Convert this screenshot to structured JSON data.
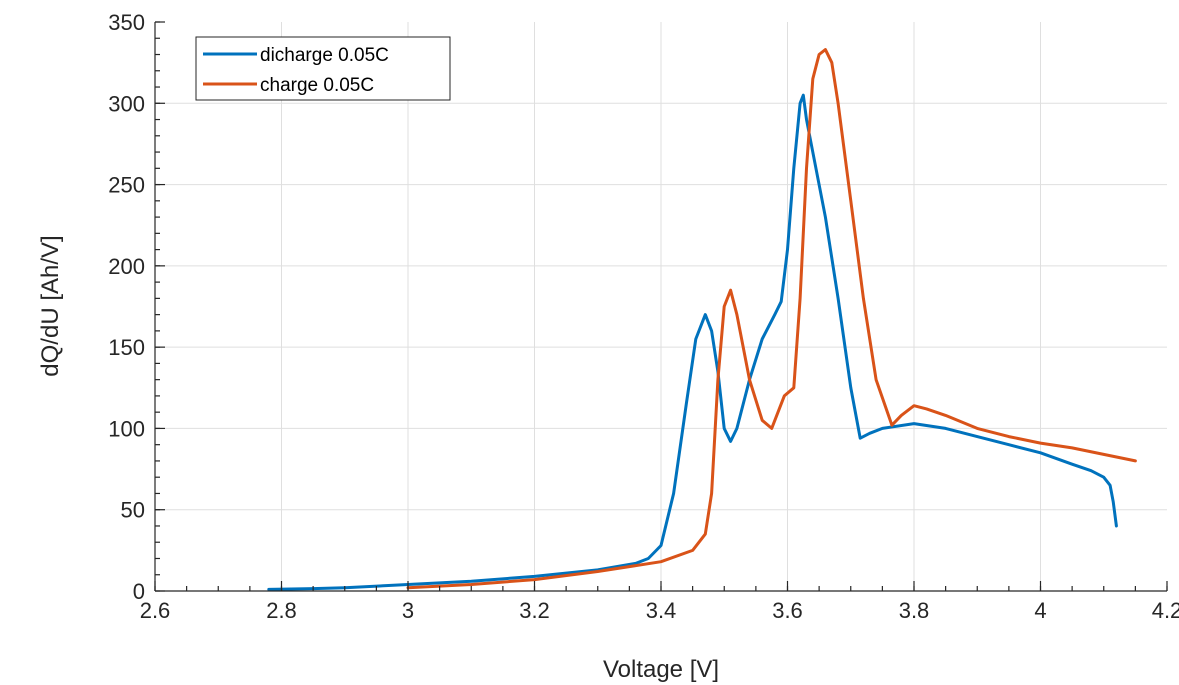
{
  "chart_data": {
    "type": "line",
    "title": "",
    "xlabel": "Voltage [V]",
    "ylabel": "dQ/dU [Ah/V]",
    "xlim": [
      2.6,
      4.2
    ],
    "ylim": [
      0,
      350
    ],
    "x_ticks": [
      2.6,
      2.8,
      3,
      3.2,
      3.4,
      3.6,
      3.8,
      4,
      4.2
    ],
    "x_tick_labels": [
      "2.6",
      "2.8",
      "3",
      "3.2",
      "3.4",
      "3.6",
      "3.8",
      "4",
      "4.2"
    ],
    "y_ticks": [
      0,
      50,
      100,
      150,
      200,
      250,
      300,
      350
    ],
    "y_tick_labels": [
      "0",
      "50",
      "100",
      "150",
      "200",
      "250",
      "300",
      "350"
    ],
    "grid": true,
    "legend_position": "top-left",
    "series": [
      {
        "name": "dicharge 0.05C",
        "color": "#0072BD",
        "x": [
          2.78,
          2.85,
          2.9,
          3.0,
          3.1,
          3.2,
          3.3,
          3.36,
          3.38,
          3.4,
          3.42,
          3.44,
          3.455,
          3.47,
          3.48,
          3.49,
          3.5,
          3.51,
          3.52,
          3.54,
          3.56,
          3.58,
          3.59,
          3.6,
          3.61,
          3.62,
          3.625,
          3.63,
          3.64,
          3.65,
          3.66,
          3.68,
          3.7,
          3.715,
          3.73,
          3.75,
          3.8,
          3.85,
          3.9,
          3.95,
          4.0,
          4.05,
          4.08,
          4.1,
          4.11,
          4.115,
          4.12
        ],
        "y": [
          1,
          1.5,
          2,
          4,
          6,
          9,
          13,
          17,
          20,
          28,
          60,
          115,
          155,
          170,
          160,
          135,
          100,
          92,
          100,
          130,
          155,
          170,
          178,
          210,
          260,
          300,
          305,
          290,
          270,
          250,
          230,
          180,
          125,
          94,
          97,
          100,
          103,
          100,
          95,
          90,
          85,
          78,
          74,
          70,
          65,
          55,
          40
        ]
      },
      {
        "name": "charge 0.05C",
        "color": "#D95319",
        "x": [
          3.0,
          3.1,
          3.2,
          3.3,
          3.4,
          3.45,
          3.47,
          3.48,
          3.49,
          3.5,
          3.51,
          3.52,
          3.54,
          3.56,
          3.575,
          3.585,
          3.595,
          3.61,
          3.62,
          3.63,
          3.64,
          3.65,
          3.66,
          3.67,
          3.68,
          3.7,
          3.72,
          3.74,
          3.765,
          3.78,
          3.8,
          3.82,
          3.85,
          3.9,
          3.95,
          4.0,
          4.05,
          4.1,
          4.15
        ],
        "y": [
          2,
          4,
          7,
          12,
          18,
          25,
          35,
          60,
          130,
          175,
          185,
          170,
          130,
          105,
          100,
          110,
          120,
          125,
          180,
          260,
          315,
          330,
          333,
          325,
          300,
          240,
          180,
          130,
          102,
          108,
          114,
          112,
          108,
          100,
          95,
          91,
          88,
          84,
          80
        ]
      }
    ]
  }
}
